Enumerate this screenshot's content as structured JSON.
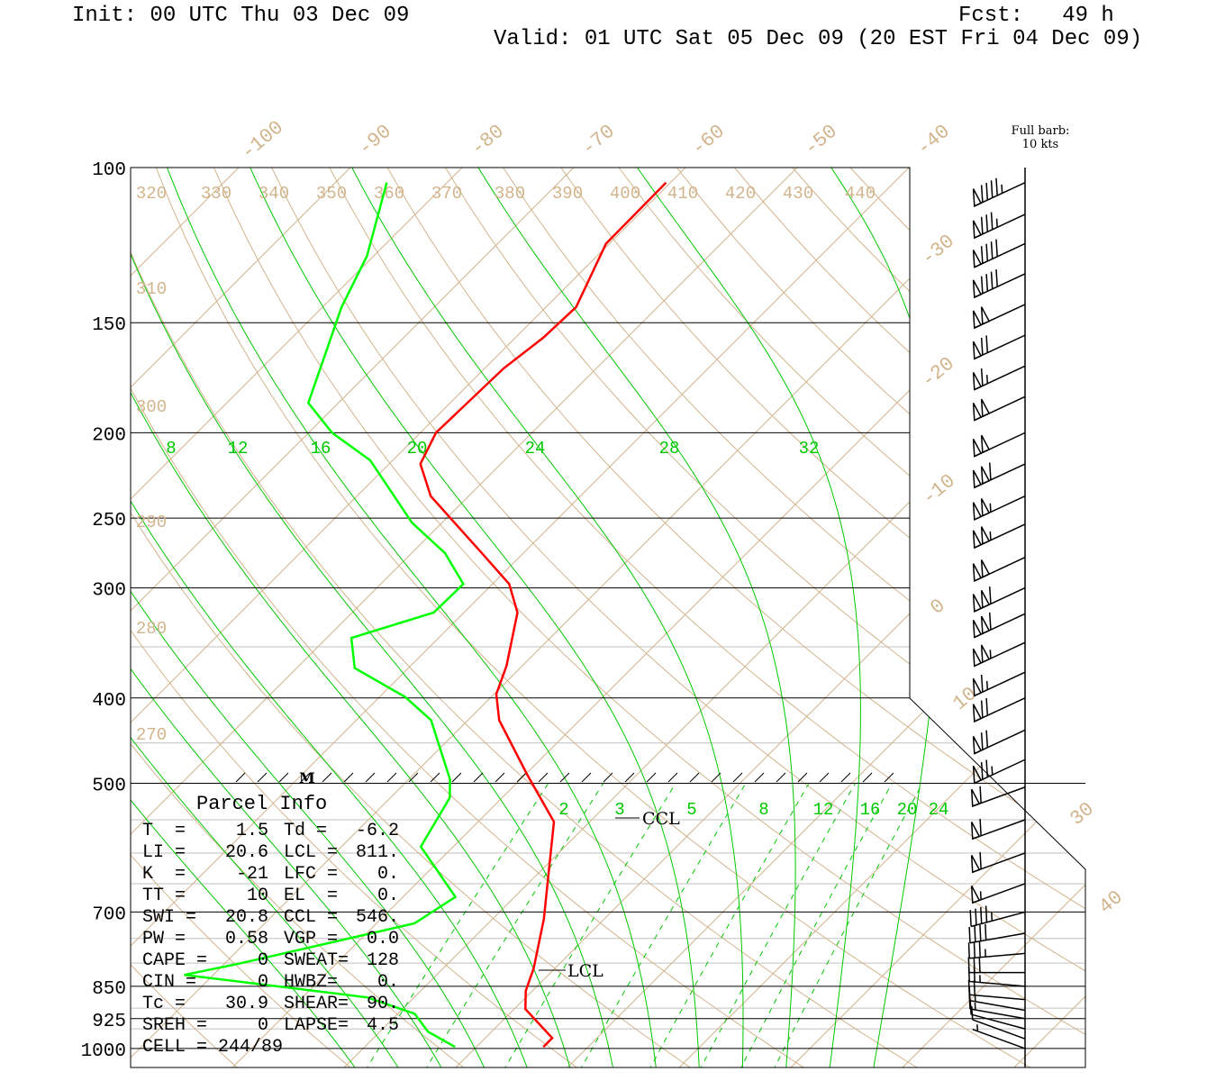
{
  "header": {
    "init": "Init: 00 UTC Thu 03 Dec 09",
    "fcst": "Fcst:   49 h",
    "valid": "Valid: 01 UTC Sat 05 Dec 09 (20 EST Fri 04 Dec 09)"
  },
  "barb_note": {
    "line1": "Full barb:",
    "line2": "10 kts"
  },
  "parcel_info": {
    "title": "Parcel Info",
    "rows": [
      [
        "T  =",
        "1.5",
        "Td =",
        "-6.2"
      ],
      [
        "LI =",
        "20.6",
        "LCL =",
        "811."
      ],
      [
        "K  =",
        "-21",
        "LFC =",
        "0."
      ],
      [
        "TT =",
        "10",
        "EL  =",
        "0."
      ],
      [
        "SWI =",
        "20.8",
        "CCL =",
        "546."
      ],
      [
        "PW =",
        "0.58",
        "VGP =",
        "0.0"
      ],
      [
        "CAPE =",
        "0",
        "SWEAT=",
        "128"
      ],
      [
        "CIN =",
        "0",
        "HWBZ=",
        "0."
      ],
      [
        "Tc =",
        "30.9",
        "SHEAR=",
        "90."
      ],
      [
        "SREH =",
        "0",
        "LAPSE=",
        "4.5"
      ]
    ],
    "cell": "CELL = 244/89"
  },
  "chart_data": {
    "type": "line",
    "subtype": "skew-T log-p sounding",
    "ylabel": "Pressure (mb)",
    "pressure_ticks": [
      "100",
      "150",
      "200",
      "250",
      "300",
      "400",
      "500",
      "700",
      "850",
      "925",
      "1000"
    ],
    "ylim": [
      1050,
      100
    ],
    "isotherm_labels": [
      "-100",
      "-90",
      "-80",
      "-70",
      "-60",
      "-50",
      "-40",
      "-30",
      "-20",
      "-10",
      "0",
      "10",
      "30",
      "40"
    ],
    "dry_adiabat_labels_top": [
      "320",
      "330",
      "340",
      "350",
      "360",
      "370",
      "380",
      "390",
      "400",
      "410",
      "420",
      "430",
      "440"
    ],
    "dry_adiabat_labels_left": [
      "310",
      "300",
      "290",
      "280",
      "270"
    ],
    "moist_adiabat_labels": [
      "8",
      "12",
      "16",
      "20",
      "24",
      "28",
      "32"
    ],
    "mixing_ratio_labels": [
      "2",
      "3",
      "5",
      "8",
      "12",
      "16",
      "20",
      "24"
    ],
    "annotations": {
      "ccl": "CCL",
      "lcl": "LCL",
      "freezing_marker": "M"
    },
    "series": [
      {
        "name": "Temperature",
        "color": "#ff0000",
        "pressure": [
          104,
          122,
          144,
          156,
          169,
          200,
          217,
          236,
          274,
          297,
          320,
          368,
          396,
          424,
          489,
          553,
          626,
          713,
          811,
          860,
          902,
          973,
          996
        ],
        "temperature": [
          -60.4,
          -60.3,
          -57.3,
          -57.5,
          -58.3,
          -58.6,
          -57.2,
          -53.4,
          -43.7,
          -38.5,
          -35.2,
          -31.4,
          -29.8,
          -27.2,
          -19.8,
          -13.2,
          -9.4,
          -5.4,
          -1.9,
          -0.6,
          1.0,
          6.0,
          6.0
        ]
      },
      {
        "name": "Dewpoint",
        "color": "#00ff00",
        "pressure": [
          104,
          126,
          144,
          185,
          200,
          215,
          253,
          274,
          297,
          320,
          342,
          370,
          399,
          424,
          495,
          519,
          590,
          673,
          721,
          801,
          825,
          875,
          913,
          957,
          996
        ],
        "temperature": [
          -85.4,
          -80.6,
          -78.3,
          -72.7,
          -67.9,
          -62.0,
          -52.7,
          -47.0,
          -42.6,
          -42.7,
          -47.8,
          -44.8,
          -37.7,
          -33.3,
          -26.3,
          -24.7,
          -22.9,
          -15.3,
          -16.6,
          -28.7,
          -32.6,
          -14.2,
          -8.5,
          -5.7,
          -1.9
        ]
      }
    ],
    "wind_barbs": {
      "units": "kts",
      "pressure": [
        104,
        113,
        122,
        132,
        143,
        155,
        168,
        182,
        200,
        217,
        236,
        254,
        277,
        300,
        321,
        346,
        374,
        400,
        435,
        470,
        505,
        550,
        600,
        650,
        700,
        740,
        780,
        820,
        850,
        880,
        905,
        925,
        950,
        975,
        1000
      ],
      "direction": [
        245,
        245,
        245,
        245,
        245,
        245,
        245,
        245,
        245,
        245,
        245,
        245,
        245,
        245,
        245,
        245,
        245,
        245,
        245,
        245,
        250,
        250,
        250,
        250,
        255,
        260,
        265,
        270,
        275,
        275,
        280,
        280,
        285,
        290,
        290
      ],
      "speed": [
        95,
        85,
        90,
        90,
        100,
        70,
        65,
        100,
        100,
        110,
        105,
        105,
        100,
        110,
        110,
        105,
        65,
        70,
        70,
        75,
        60,
        60,
        60,
        55,
        45,
        40,
        35,
        30,
        25,
        20,
        15,
        15,
        10,
        10,
        5
      ]
    },
    "colors": {
      "isotherm": "#d2b48c",
      "moist": "#00c800",
      "frame": "#000000",
      "minor_isobar": "#c0c0c0"
    }
  }
}
